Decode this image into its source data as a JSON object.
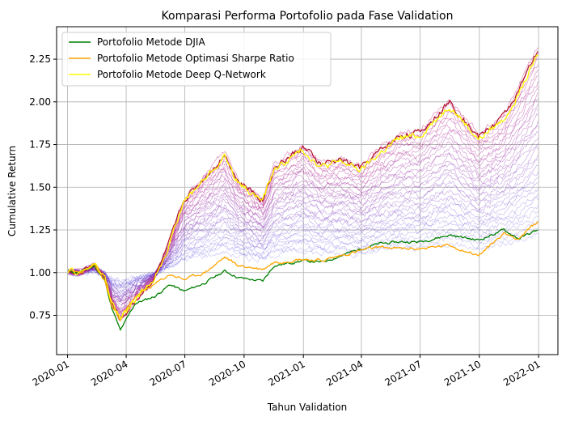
{
  "chart_data": {
    "type": "line",
    "title": "Komparasi Performa Portofolio pada Fase Validation",
    "xlabel": "Tahun Validation",
    "ylabel": "Cumulative Return",
    "xlim": [
      "2019-12-15",
      "2022-01-31"
    ],
    "ylim": [
      0.52,
      2.44
    ],
    "xticks": [
      "2020-01-01",
      "2020-04-01",
      "2020-07-01",
      "2020-10-01",
      "2021-01-01",
      "2021-04-01",
      "2021-07-01",
      "2021-10-01",
      "2022-01-01"
    ],
    "xtick_labels": [
      "2020-01",
      "2020-04",
      "2020-07",
      "2020-10",
      "2021-01",
      "2021-04",
      "2021-07",
      "2021-10",
      "2022-01"
    ],
    "yticks": [
      0.75,
      1.0,
      1.25,
      1.5,
      1.75,
      2.0,
      2.25
    ],
    "ytick_labels": [
      "0.75",
      "1.00",
      "1.25",
      "1.50",
      "1.75",
      "2.00",
      "2.25"
    ],
    "grid": true,
    "legend_position": "top-left",
    "series": [
      {
        "name": "Portofolio Metode DJIA",
        "color": "#008000",
        "x": [
          "2020-01-02",
          "2020-01-20",
          "2020-02-12",
          "2020-02-28",
          "2020-03-10",
          "2020-03-23",
          "2020-04-15",
          "2020-05-15",
          "2020-06-08",
          "2020-06-30",
          "2020-08-01",
          "2020-09-01",
          "2020-09-23",
          "2020-10-30",
          "2020-11-16",
          "2020-12-31",
          "2021-01-29",
          "2021-03-01",
          "2021-03-31",
          "2021-04-30",
          "2021-06-01",
          "2021-06-30",
          "2021-08-16",
          "2021-09-30",
          "2021-11-08",
          "2021-12-01",
          "2021-12-31"
        ],
        "y": [
          1.01,
          1.0,
          1.04,
          0.95,
          0.79,
          0.66,
          0.82,
          0.86,
          0.93,
          0.89,
          0.94,
          1.01,
          0.97,
          0.95,
          1.04,
          1.07,
          1.06,
          1.1,
          1.14,
          1.17,
          1.18,
          1.18,
          1.22,
          1.19,
          1.25,
          1.2,
          1.25
        ]
      },
      {
        "name": "Portofolio Metode Optimasi Sharpe Ratio",
        "color": "#ffa500",
        "x": [
          "2020-01-02",
          "2020-01-20",
          "2020-02-12",
          "2020-02-28",
          "2020-03-10",
          "2020-03-23",
          "2020-04-15",
          "2020-05-15",
          "2020-06-08",
          "2020-06-30",
          "2020-08-01",
          "2020-09-01",
          "2020-09-23",
          "2020-10-30",
          "2020-11-16",
          "2020-12-31",
          "2021-01-29",
          "2021-03-01",
          "2021-03-31",
          "2021-04-30",
          "2021-06-01",
          "2021-06-30",
          "2021-08-16",
          "2021-09-30",
          "2021-11-08",
          "2021-12-01",
          "2021-12-31"
        ],
        "y": [
          1.01,
          1.0,
          1.04,
          0.95,
          0.8,
          0.73,
          0.86,
          0.93,
          0.99,
          0.96,
          1.0,
          1.09,
          1.04,
          1.02,
          1.06,
          1.08,
          1.07,
          1.1,
          1.13,
          1.15,
          1.14,
          1.14,
          1.16,
          1.1,
          1.23,
          1.2,
          1.3
        ]
      },
      {
        "name": "Portofolio Metode Deep Q-Network",
        "color": "#ffff00",
        "x": [
          "2020-01-02",
          "2020-01-20",
          "2020-02-12",
          "2020-02-28",
          "2020-03-10",
          "2020-03-23",
          "2020-04-15",
          "2020-05-15",
          "2020-06-08",
          "2020-06-30",
          "2020-08-01",
          "2020-09-01",
          "2020-09-23",
          "2020-10-30",
          "2020-11-16",
          "2020-12-31",
          "2021-01-29",
          "2021-03-01",
          "2021-03-31",
          "2021-04-30",
          "2021-06-01",
          "2021-06-30",
          "2021-08-16",
          "2021-09-30",
          "2021-11-08",
          "2021-12-01",
          "2021-12-31"
        ],
        "y": [
          1.01,
          1.0,
          1.05,
          0.97,
          0.82,
          0.73,
          0.84,
          0.97,
          1.18,
          1.42,
          1.55,
          1.68,
          1.52,
          1.42,
          1.6,
          1.72,
          1.62,
          1.65,
          1.6,
          1.7,
          1.79,
          1.8,
          1.98,
          1.78,
          1.9,
          2.05,
          2.27
        ]
      }
    ]
  }
}
